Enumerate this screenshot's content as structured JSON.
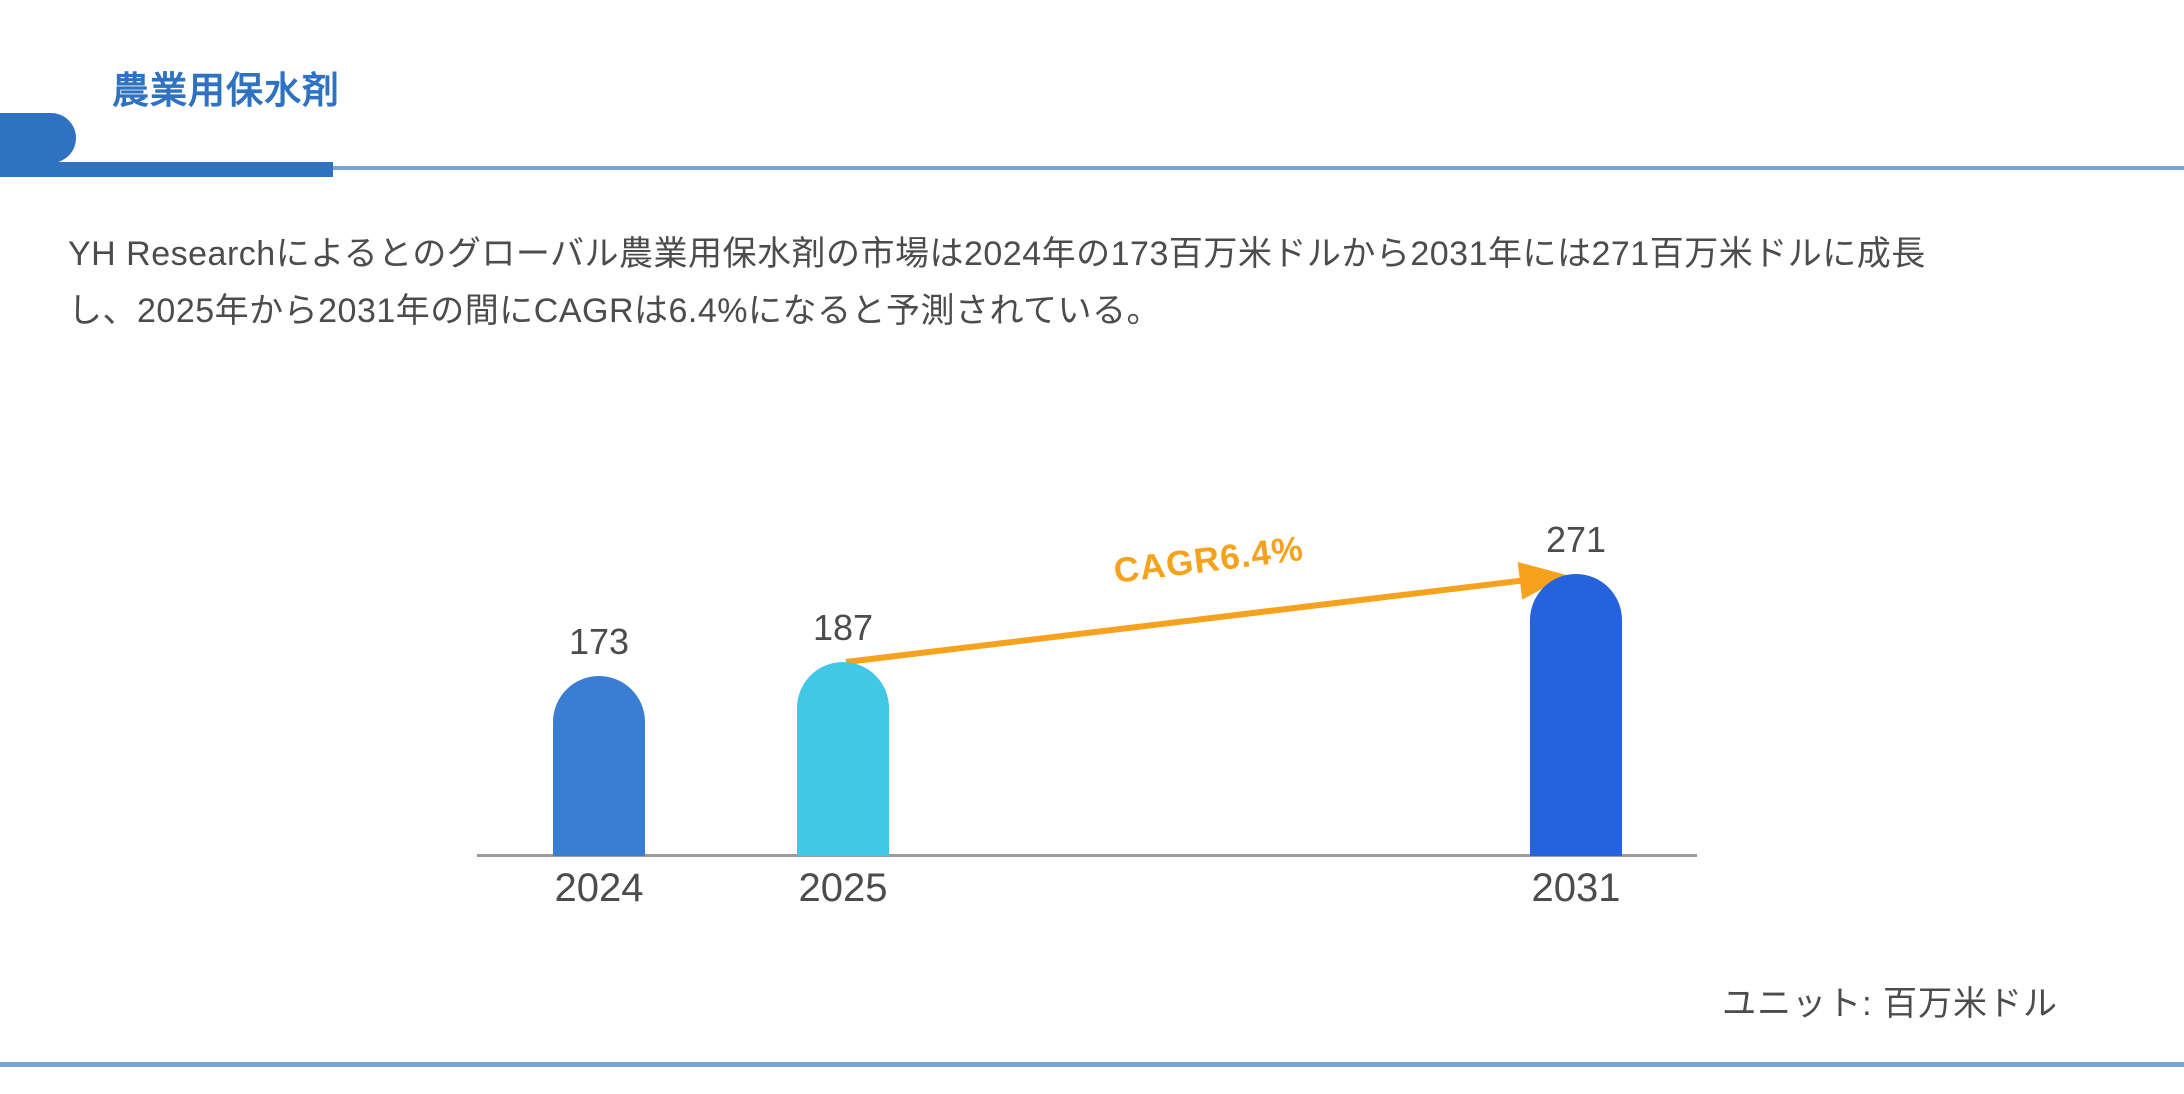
{
  "header": {
    "title": "農業用保水剤"
  },
  "description": {
    "line1": "YH Researchによるとのグローバル農業用保水剤の市場は2024年の173百万米ドルから2031年には271百万米ドルに成長",
    "line2": "し、2025年から2031年の間にCAGRは6.4%になると予測されている。"
  },
  "chart_data": {
    "type": "bar",
    "title": "",
    "categories": [
      "2024",
      "2025",
      "2031"
    ],
    "values": [
      173,
      187,
      271
    ],
    "bar_colors": [
      "#3a7dd2",
      "#40c8e6",
      "#2562dd"
    ],
    "annotation": {
      "label": "CAGR6.4%",
      "from_category": "2025",
      "to_category": "2031"
    },
    "unit_note": "ユニット: 百万米ドル",
    "xlabel": "",
    "ylabel": "",
    "ylim": [
      0,
      285
    ],
    "grid": false,
    "legend": false
  },
  "colors": {
    "brand_blue": "#2e72c1",
    "light_blue": "#7aa3d6",
    "axis_gray": "#9b9b9b",
    "text_gray": "#4c4c4c",
    "accent_orange": "#f7a21c"
  }
}
